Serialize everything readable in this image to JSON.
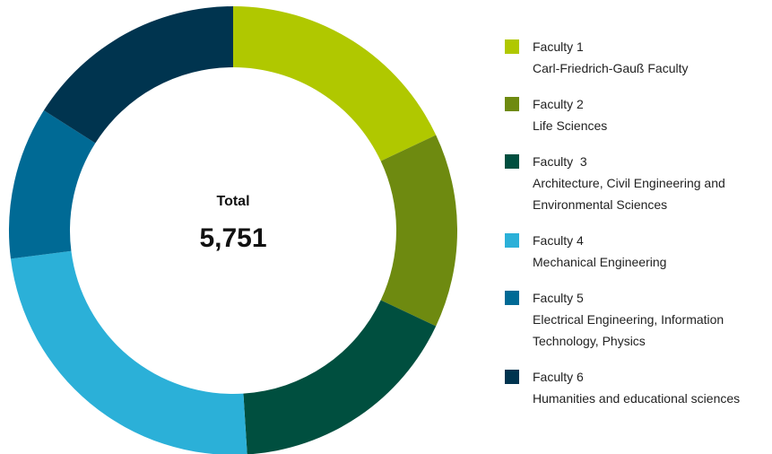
{
  "chart_data": {
    "type": "donut",
    "center_label": "Total",
    "total": "5,751",
    "categories": [
      "Faculty 1",
      "Faculty 2",
      "Faculty  3",
      "Faculty 4",
      "Faculty 5",
      "Faculty 6"
    ],
    "descriptions": [
      "Carl-Friedrich-Gauß Faculty",
      "Life Sciences",
      "Architecture, Civil Engineering and Environmental Sciences",
      "Mechanical Engineering",
      "Electrical Engineering, Information Technology, Physics",
      "Humanities and educational sciences"
    ],
    "values": [
      18,
      14,
      17,
      24,
      11,
      16
    ],
    "colors": [
      "#b0c800",
      "#6e8a10",
      "#004f3f",
      "#2bb0d8",
      "#006a95",
      "#00344f"
    ]
  }
}
